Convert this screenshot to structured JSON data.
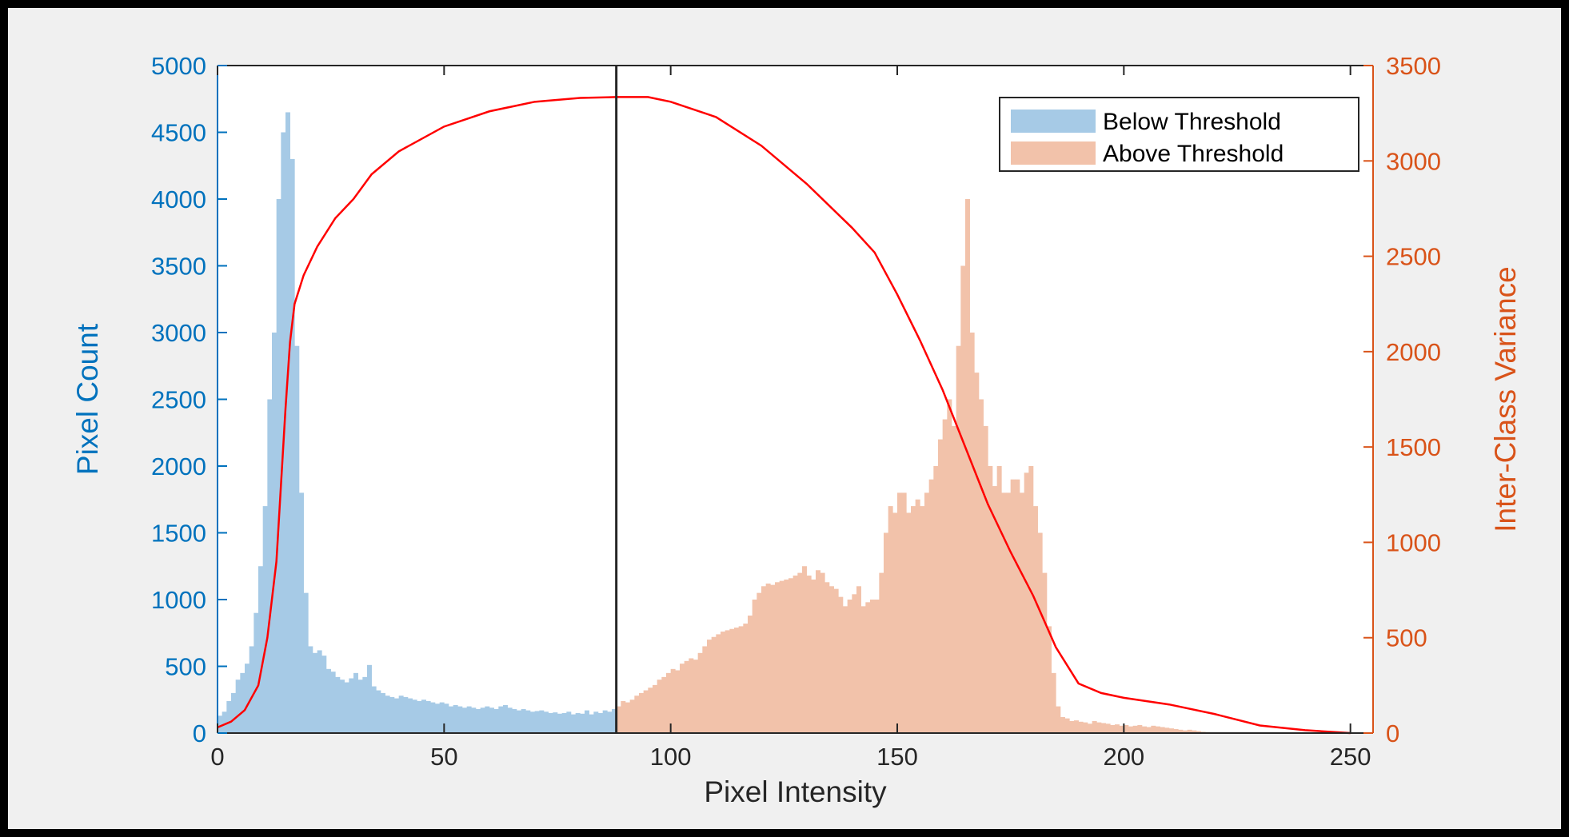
{
  "chart_data": {
    "type": "bar",
    "title": "",
    "xlabel": "Pixel Intensity",
    "ylabel_left": "Pixel Count",
    "ylabel_right": "Inter-Class Variance",
    "xlim": [
      0,
      255
    ],
    "ylim_left": [
      0,
      5000
    ],
    "ylim_right": [
      0,
      3500
    ],
    "x_ticks": [
      "0",
      "50",
      "100",
      "150",
      "200",
      "250"
    ],
    "y_left_ticks": [
      "0",
      "500",
      "1000",
      "1500",
      "2000",
      "2500",
      "3000",
      "3500",
      "4000",
      "4500",
      "5000"
    ],
    "y_right_ticks": [
      "0",
      "500",
      "1000",
      "1500",
      "2000",
      "2500",
      "3000",
      "3500"
    ],
    "threshold": 88,
    "grid": false,
    "legend_position": "top-right",
    "colors": {
      "below": "#a6cae6",
      "above": "#f2c2aa",
      "variance": "#ff0000",
      "threshold_line": "#262626",
      "left_axis": "#0072bd",
      "right_axis": "#d95319"
    },
    "series": [
      {
        "name": "Below Threshold",
        "x_start": 0,
        "values": [
          130,
          160,
          240,
          300,
          400,
          450,
          520,
          650,
          900,
          1250,
          1700,
          2500,
          3000,
          4000,
          4500,
          4650,
          4300,
          2900,
          1800,
          1050,
          650,
          600,
          620,
          580,
          480,
          460,
          420,
          400,
          380,
          410,
          450,
          400,
          420,
          510,
          350,
          320,
          300,
          280,
          270,
          260,
          280,
          270,
          260,
          250,
          240,
          250,
          240,
          230,
          220,
          230,
          220,
          200,
          210,
          200,
          190,
          200,
          190,
          180,
          190,
          200,
          190,
          180,
          200,
          210,
          190,
          180,
          170,
          180,
          170,
          160,
          165,
          170,
          160,
          150,
          155,
          145,
          150,
          160,
          140,
          150,
          145,
          170,
          140,
          160,
          150,
          170,
          160,
          180
        ]
      },
      {
        "name": "Above Threshold",
        "x_start": 88,
        "values": [
          200,
          240,
          230,
          250,
          280,
          300,
          320,
          340,
          360,
          400,
          420,
          450,
          480,
          470,
          520,
          540,
          560,
          550,
          600,
          650,
          700,
          720,
          740,
          760,
          770,
          780,
          790,
          800,
          820,
          880,
          1000,
          1050,
          1100,
          1120,
          1110,
          1130,
          1140,
          1150,
          1160,
          1180,
          1200,
          1250,
          1180,
          1150,
          1220,
          1200,
          1130,
          1100,
          1080,
          1020,
          950,
          1000,
          1040,
          1100,
          950,
          980,
          1000,
          1000,
          1200,
          1500,
          1700,
          1650,
          1800,
          1800,
          1650,
          1700,
          1750,
          1700,
          1800,
          1900,
          2000,
          2200,
          2350,
          2500,
          2300,
          2900,
          3500,
          4000,
          3000,
          2700,
          2500,
          2300,
          2000,
          1850,
          2000,
          1800,
          1800,
          1900,
          1900,
          1800,
          1950,
          2000,
          1700,
          1500,
          1200,
          800,
          450,
          200,
          120,
          110,
          90,
          95,
          85,
          80,
          70,
          90,
          80,
          75,
          70,
          60,
          65,
          55,
          60,
          50,
          55,
          60,
          50,
          45,
          55,
          50,
          45,
          40,
          35,
          30,
          25,
          20,
          25,
          20,
          15,
          10,
          8,
          6,
          4,
          2,
          1,
          0
        ]
      },
      {
        "name": "Inter-Class Variance",
        "axis": "right",
        "points": [
          [
            0,
            30
          ],
          [
            3,
            60
          ],
          [
            6,
            120
          ],
          [
            9,
            250
          ],
          [
            11,
            500
          ],
          [
            13,
            900
          ],
          [
            14,
            1300
          ],
          [
            15,
            1700
          ],
          [
            16,
            2050
          ],
          [
            17,
            2250
          ],
          [
            19,
            2400
          ],
          [
            22,
            2550
          ],
          [
            26,
            2700
          ],
          [
            30,
            2800
          ],
          [
            34,
            2930
          ],
          [
            40,
            3050
          ],
          [
            50,
            3180
          ],
          [
            60,
            3260
          ],
          [
            70,
            3310
          ],
          [
            80,
            3330
          ],
          [
            88,
            3335
          ],
          [
            95,
            3335
          ],
          [
            100,
            3310
          ],
          [
            110,
            3230
          ],
          [
            120,
            3080
          ],
          [
            130,
            2880
          ],
          [
            140,
            2650
          ],
          [
            145,
            2520
          ],
          [
            150,
            2300
          ],
          [
            155,
            2060
          ],
          [
            160,
            1800
          ],
          [
            165,
            1500
          ],
          [
            170,
            1200
          ],
          [
            175,
            950
          ],
          [
            180,
            720
          ],
          [
            185,
            450
          ],
          [
            190,
            260
          ],
          [
            195,
            210
          ],
          [
            200,
            185
          ],
          [
            210,
            150
          ],
          [
            220,
            100
          ],
          [
            230,
            40
          ],
          [
            240,
            15
          ],
          [
            250,
            0
          ]
        ]
      }
    ]
  }
}
